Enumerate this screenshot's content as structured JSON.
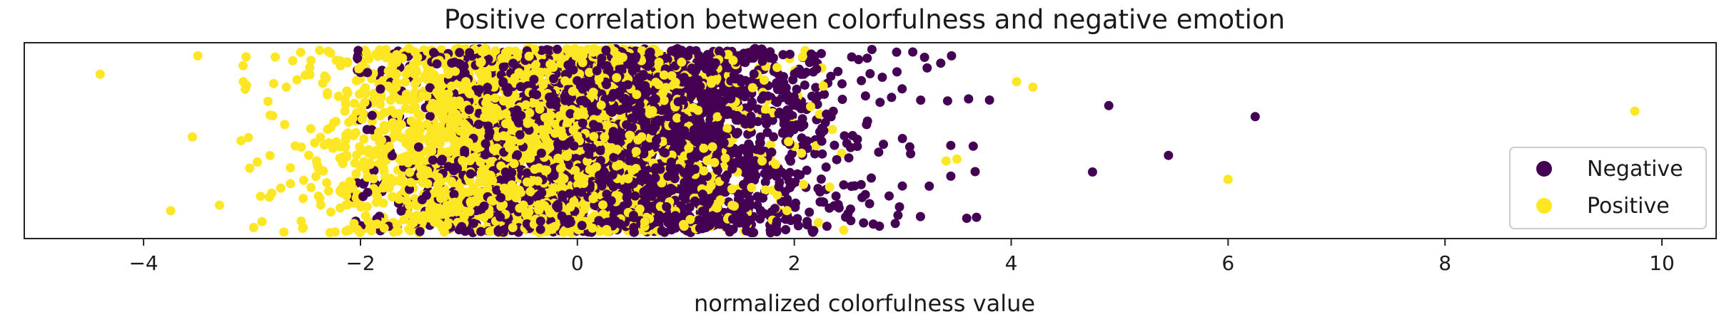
{
  "chart_data": {
    "type": "scatter",
    "title": "Positive correlation between colorfulness and negative emotion",
    "xlabel": "normalized colorfulness value",
    "ylabel": "",
    "xlim": [
      -5.1,
      10.5
    ],
    "ylim": [
      0,
      1
    ],
    "xticks": [
      -4,
      -2,
      0,
      2,
      4,
      6,
      8,
      10
    ],
    "xtick_labels": [
      "−4",
      "−2",
      "0",
      "2",
      "4",
      "6",
      "8",
      "10"
    ],
    "grid": false,
    "legend": {
      "placement": "lower-right",
      "entries": [
        {
          "label": "Negative",
          "color": "#440154"
        },
        {
          "label": "Positive",
          "color": "#fde725"
        }
      ]
    },
    "series": [
      {
        "name": "Negative",
        "color": "#440154",
        "point_count": 2600,
        "distribution": {
          "center": 0.45,
          "spread": 1.0,
          "min": -2.1,
          "max": 3.7
        },
        "outliers": [
          {
            "x": 3.35,
            "y": 0.92
          },
          {
            "x": 3.45,
            "y": 0.96
          },
          {
            "x": 3.8,
            "y": 0.72
          },
          {
            "x": 3.65,
            "y": 0.47
          },
          {
            "x": 4.75,
            "y": 0.33
          },
          {
            "x": 4.9,
            "y": 0.69
          },
          {
            "x": 5.45,
            "y": 0.42
          },
          {
            "x": 6.25,
            "y": 0.63
          }
        ]
      },
      {
        "name": "Positive",
        "color": "#fde725",
        "point_count": 2600,
        "distribution": {
          "center": -0.4,
          "spread": 0.95,
          "min": -3.1,
          "max": 2.6
        },
        "outliers": [
          {
            "x": -4.4,
            "y": 0.86
          },
          {
            "x": -3.75,
            "y": 0.12
          },
          {
            "x": -3.55,
            "y": 0.52
          },
          {
            "x": -3.5,
            "y": 0.96
          },
          {
            "x": -3.3,
            "y": 0.15
          },
          {
            "x": -3.1,
            "y": 0.5
          },
          {
            "x": -3.05,
            "y": 0.8
          },
          {
            "x": 3.4,
            "y": 0.39
          },
          {
            "x": 3.5,
            "y": 0.4
          },
          {
            "x": 4.05,
            "y": 0.82
          },
          {
            "x": 4.2,
            "y": 0.79
          },
          {
            "x": 6.0,
            "y": 0.29
          },
          {
            "x": 9.75,
            "y": 0.66
          }
        ]
      }
    ]
  }
}
